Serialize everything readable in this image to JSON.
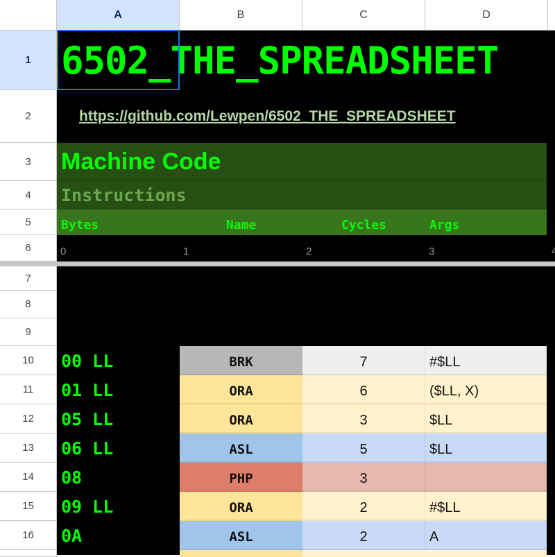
{
  "columns": [
    "A",
    "B",
    "C",
    "D"
  ],
  "rows": [
    "1",
    "2",
    "3",
    "4",
    "5",
    "6",
    "7",
    "8",
    "9",
    "10",
    "11",
    "12",
    "13",
    "14",
    "15",
    "16"
  ],
  "title": "6502_THE_SPREADSHEET",
  "link": "https://github.com/Lewpen/6502_THE_SPREADSHEET",
  "section_title": "Machine Code",
  "section_subtitle": "Instructions",
  "headers": {
    "bytes": "Bytes",
    "name": "Name",
    "cycles": "Cycles",
    "args": "Args"
  },
  "index_row": [
    "0",
    "1",
    "2",
    "3",
    "4"
  ],
  "colors": {
    "accent_green": "#00ff00",
    "header_dark": "#274e13",
    "header_mid": "#38761d",
    "selection": "#1a73e8"
  },
  "instructions": [
    {
      "bytes": "00 LL",
      "name": "BRK",
      "cycles": "7",
      "args": "#$LL",
      "name_bg": "#b7b7b7",
      "bg": "#efefef"
    },
    {
      "bytes": "01 LL",
      "name": "ORA",
      "cycles": "6",
      "args": "($LL, X)",
      "name_bg": "#ffe599",
      "bg": "#fff2cc"
    },
    {
      "bytes": "05 LL",
      "name": "ORA",
      "cycles": "3",
      "args": "$LL",
      "name_bg": "#ffe599",
      "bg": "#fff2cc"
    },
    {
      "bytes": "06 LL",
      "name": "ASL",
      "cycles": "5",
      "args": "$LL",
      "name_bg": "#9fc5e8",
      "bg": "#c9daf8"
    },
    {
      "bytes": "08",
      "name": "PHP",
      "cycles": "3",
      "args": "",
      "name_bg": "#dd7e6b",
      "bg": "#e6b8af"
    },
    {
      "bytes": "09 LL",
      "name": "ORA",
      "cycles": "2",
      "args": "#$LL",
      "name_bg": "#ffe599",
      "bg": "#fff2cc"
    },
    {
      "bytes": "0A",
      "name": "ASL",
      "cycles": "2",
      "args": "A",
      "name_bg": "#9fc5e8",
      "bg": "#c9daf8"
    }
  ]
}
